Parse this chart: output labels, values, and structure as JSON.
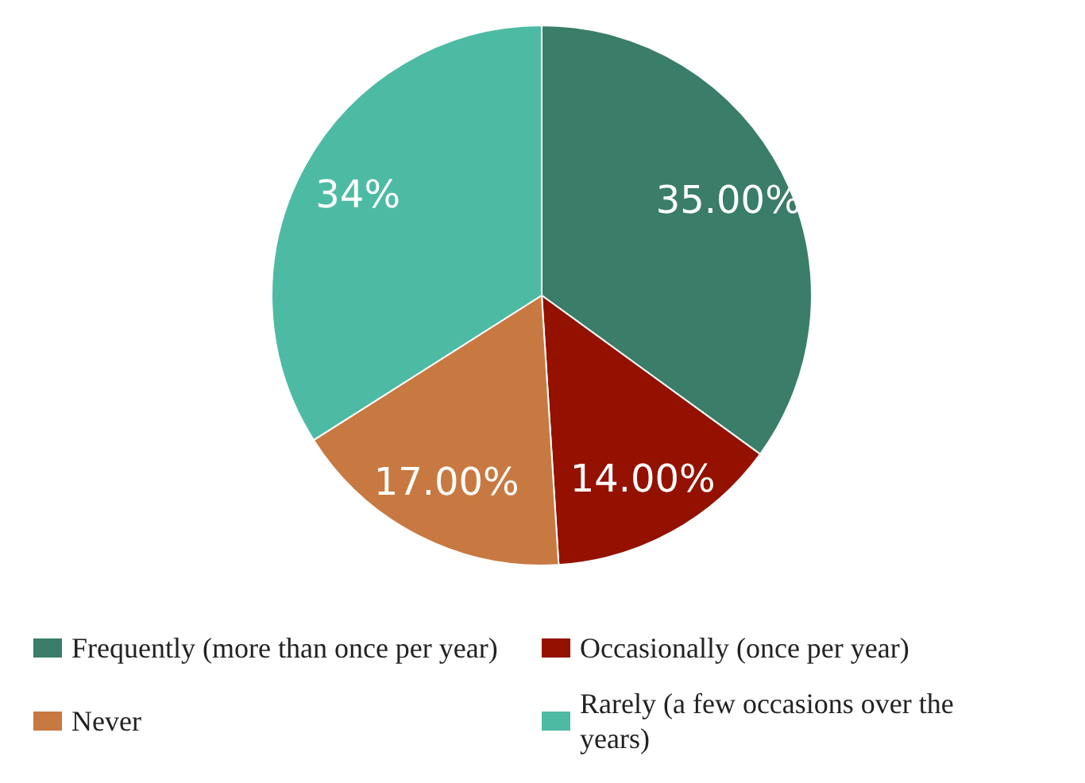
{
  "chart_data": {
    "type": "pie",
    "categories": [
      "Frequently (more than once per year)",
      "Occasionally (once per year)",
      "Never",
      "Rarely (a few occasions over the years)"
    ],
    "values": [
      35,
      14,
      17,
      34
    ],
    "colors": [
      "#3a7d68",
      "#941100",
      "#c87941",
      "#4dbba4"
    ],
    "value_labels": [
      "35.00%",
      "14.00%",
      "17.00%",
      "34%"
    ],
    "legend": "bottom"
  }
}
